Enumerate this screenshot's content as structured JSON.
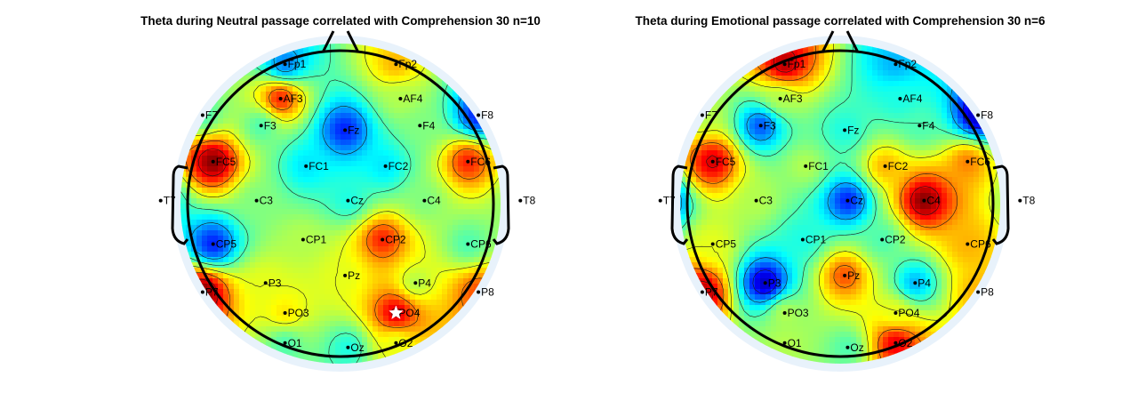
{
  "figure": {
    "panels": [
      {
        "title": "Theta during Neutral passage correlated with Comprehension 30 n=10",
        "electrodes": [
          {
            "label": "Fp1",
            "blob": 0.25
          },
          {
            "label": "Fp2",
            "blob": 0.7
          },
          {
            "label": "AF3",
            "blob": 0.85
          },
          {
            "label": "AF4",
            "blob": 0.55
          },
          {
            "label": "F7",
            "blob": 0.45
          },
          {
            "label": "F3",
            "blob": 0.45
          },
          {
            "label": "Fz",
            "blob": 0.15
          },
          {
            "label": "F4",
            "blob": 0.5
          },
          {
            "label": "F8",
            "blob": 0.15
          },
          {
            "label": "FC5",
            "blob": 1.0
          },
          {
            "label": "FC1",
            "blob": 0.35
          },
          {
            "label": "FC2",
            "blob": 0.35
          },
          {
            "label": "FC6",
            "blob": 0.85
          },
          {
            "label": "T7",
            "blob": 0.35
          },
          {
            "label": "C3",
            "blob": 0.5
          },
          {
            "label": "Cz",
            "blob": 0.4
          },
          {
            "label": "C4",
            "blob": 0.5
          },
          {
            "label": "T8",
            "blob": 0.5
          },
          {
            "label": "CP5",
            "blob": 0.15
          },
          {
            "label": "CP1",
            "blob": 0.55
          },
          {
            "label": "CP2",
            "blob": 0.85
          },
          {
            "label": "CP6",
            "blob": 0.45
          },
          {
            "label": "P7",
            "blob": 1.0
          },
          {
            "label": "P3",
            "blob": 0.6
          },
          {
            "label": "Pz",
            "blob": 0.6
          },
          {
            "label": "P4",
            "blob": 0.55
          },
          {
            "label": "P8",
            "blob": 0.8
          },
          {
            "label": "PO3",
            "blob": 0.65
          },
          {
            "label": "PO4",
            "blob": 0.92
          },
          {
            "label": "O1",
            "blob": 0.45
          },
          {
            "label": "Oz",
            "blob": 0.4
          },
          {
            "label": "O2",
            "blob": 0.6
          }
        ],
        "significance_marker": {
          "electrode": "PO4",
          "symbol": "star",
          "color": "#ffffff"
        }
      },
      {
        "title": "Theta during Emotional passage correlated with Comprehension 30 n=6",
        "electrodes": [
          {
            "label": "Fp1",
            "blob": 0.95
          },
          {
            "label": "Fp2",
            "blob": 0.3
          },
          {
            "label": "AF3",
            "blob": 0.55
          },
          {
            "label": "AF4",
            "blob": 0.4
          },
          {
            "label": "F7",
            "blob": 0.55
          },
          {
            "label": "F3",
            "blob": 0.2
          },
          {
            "label": "Fz",
            "blob": 0.4
          },
          {
            "label": "F4",
            "blob": 0.45
          },
          {
            "label": "F8",
            "blob": 0.05
          },
          {
            "label": "FC5",
            "blob": 0.92
          },
          {
            "label": "FC1",
            "blob": 0.55
          },
          {
            "label": "FC2",
            "blob": 0.7
          },
          {
            "label": "FC6",
            "blob": 0.75
          },
          {
            "label": "T7",
            "blob": 0.15
          },
          {
            "label": "C3",
            "blob": 0.55
          },
          {
            "label": "Cz",
            "blob": 0.15
          },
          {
            "label": "C4",
            "blob": 1.0
          },
          {
            "label": "T8",
            "blob": 0.5
          },
          {
            "label": "CP5",
            "blob": 0.6
          },
          {
            "label": "CP1",
            "blob": 0.4
          },
          {
            "label": "CP2",
            "blob": 0.45
          },
          {
            "label": "CP6",
            "blob": 0.7
          },
          {
            "label": "P7",
            "blob": 0.95
          },
          {
            "label": "P3",
            "blob": 0.05
          },
          {
            "label": "Pz",
            "blob": 0.8
          },
          {
            "label": "P4",
            "blob": 0.3
          },
          {
            "label": "P8",
            "blob": 0.7
          },
          {
            "label": "PO3",
            "blob": 0.55
          },
          {
            "label": "PO4",
            "blob": 0.6
          },
          {
            "label": "O1",
            "blob": 0.55
          },
          {
            "label": "Oz",
            "blob": 0.45
          },
          {
            "label": "O2",
            "blob": 0.9
          }
        ]
      }
    ],
    "colors": {
      "colormap": [
        "#00008f",
        "#0000ff",
        "#0080ff",
        "#00ffff",
        "#80ff80",
        "#ffff00",
        "#ff8000",
        "#ff0000",
        "#800000"
      ],
      "halo": "#e8f2fb",
      "outline": "#000000",
      "contour": "#1a1a1a"
    }
  }
}
